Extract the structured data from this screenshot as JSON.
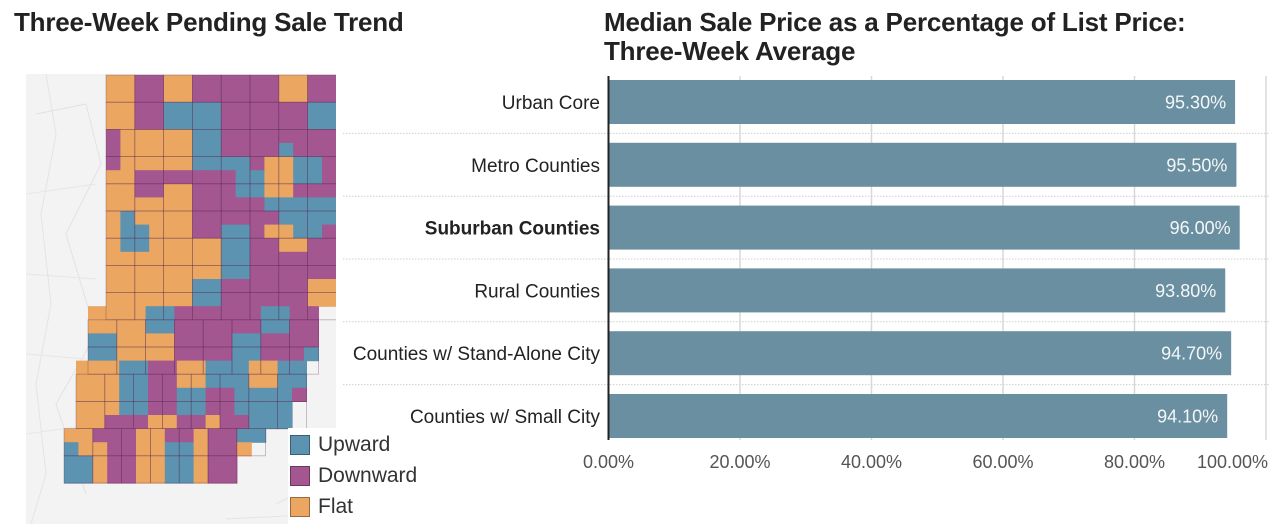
{
  "map": {
    "title": "Three-Week Pending Sale Trend",
    "legend": [
      {
        "label": "Upward",
        "color": "#5b93b0"
      },
      {
        "label": "Downward",
        "color": "#a45690"
      },
      {
        "label": "Flat",
        "color": "#eba661"
      }
    ],
    "counties_grid": [
      "FFDDFFDDDDDDFFDD",
      "FFDDFFDDDDDDFFDD",
      "FFDDUUUUDDDDDDUU",
      "FFDDUUUUDDDDDDUU",
      "DFFFFFUUDDDDDDDD",
      "DFFFFFUUDDDDUDDD",
      "DFFFFFUUUUDFFUUDD",
      "FFDDDDDDDUUFFUUDD",
      "FFDDFFDDDUUFFDDDD",
      "FFFFFFDDDDDUUUUU",
      "FUFFFFDDDDDDUUUU",
      "FUUFFFDDUUDFFUUDD",
      "FUUFFFFFUUDDFFDDD",
      "FFFFFFFFUUDDDDDD",
      "FFFFFFFFUUDDDDDD",
      "FFFFFFUUDDDDDDFF",
      "FFFFFFUUDDDDDDFF",
      "FFFFUUDDDDDDUUDD",
      "FFFFUUDDDDDDUUDD",
      "UUFFFFDDDDUUDDDD",
      "UUFFFFDDDDUUDDDU",
      "FFFUUDDFFUUUFFUU",
      "FFFUUDDFFUUUFFUU",
      "FFFUUDDUUDDUUUUD",
      "FFFUUDDUUDDUUUU.",
      "FFDDDFFDDFDDUUU.",
      "FFDDDFFDDFDDUU..",
      "UFFDDFFUUFDDF...",
      "UUFDDFFUUFDD....",
      "UUFDDFFUUFDD...."
    ],
    "color_codes": {
      "U": "Upward",
      "D": "Downward",
      "F": "Flat"
    }
  },
  "chart_data": {
    "type": "bar",
    "orientation": "horizontal",
    "title": "Median Sale Price as a Percentage of List Price: Three-Week Average",
    "categories": [
      "Urban Core",
      "Metro Counties",
      "Suburban Counties",
      "Rural Counties",
      "Counties w/ Stand-Alone City",
      "Counties w/ Small City"
    ],
    "highlighted_category": "Suburban Counties",
    "values": [
      95.3,
      95.5,
      96.0,
      93.8,
      94.7,
      94.1
    ],
    "value_labels": [
      "95.30%",
      "95.50%",
      "96.00%",
      "93.80%",
      "94.70%",
      "94.10%"
    ],
    "xlabel": "",
    "ylabel": "",
    "xlim": [
      0,
      100
    ],
    "x_ticks": [
      0,
      20,
      40,
      60,
      80,
      100
    ],
    "x_tick_labels": [
      "0.00%",
      "20.00%",
      "40.00%",
      "60.00%",
      "80.00%",
      "100.00%"
    ],
    "bar_color": "#6a8fa0",
    "grid": true,
    "legend": "none"
  }
}
